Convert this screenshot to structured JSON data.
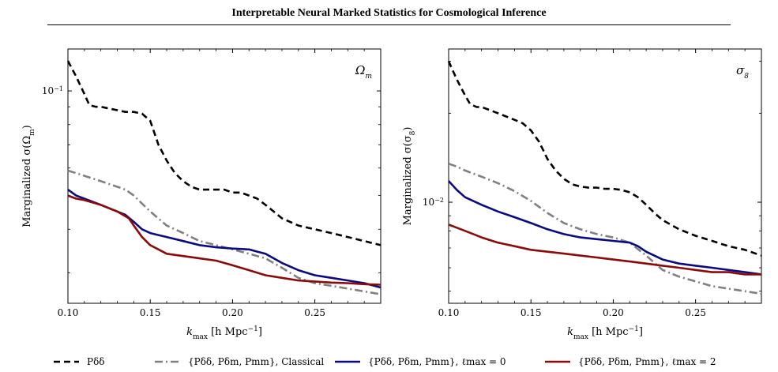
{
  "paper": {
    "title": "Interpretable Neural Marked Statistics for Cosmological Inference"
  },
  "chart_data": [
    {
      "type": "line",
      "panel_label": "Ωm",
      "xlabel": "kmax [h Mpc−1]",
      "ylabel": "Marginalized σ(Ωm)",
      "xlim": [
        0.1,
        0.29
      ],
      "ylim": [
        0.0245,
        0.132
      ],
      "yscale": "log",
      "xticks": [
        "0.10",
        "0.15",
        "0.20",
        "0.25"
      ],
      "yticks": [
        {
          "value": 0.1,
          "label": "10−1"
        }
      ],
      "series": [
        {
          "name": "Pδδ",
          "color": "#000000",
          "dash": "dashed",
          "x": [
            0.1,
            0.105,
            0.11,
            0.113,
            0.117,
            0.12,
            0.125,
            0.13,
            0.135,
            0.14,
            0.145,
            0.15,
            0.155,
            0.16,
            0.165,
            0.17,
            0.175,
            0.18,
            0.185,
            0.19,
            0.195,
            0.2,
            0.205,
            0.21,
            0.215,
            0.22,
            0.225,
            0.23,
            0.24,
            0.25,
            0.26,
            0.27,
            0.28,
            0.29
          ],
          "y": [
            0.122,
            0.11,
            0.098,
            0.091,
            0.09,
            0.09,
            0.089,
            0.088,
            0.087,
            0.087,
            0.086,
            0.082,
            0.07,
            0.063,
            0.058,
            0.055,
            0.053,
            0.052,
            0.052,
            0.052,
            0.052,
            0.051,
            0.051,
            0.05,
            0.049,
            0.047,
            0.045,
            0.043,
            0.041,
            0.04,
            0.039,
            0.038,
            0.037,
            0.036
          ]
        },
        {
          "name": "{Pδδ, Pδm, Pmm}, Classical",
          "color": "#808080",
          "dash": "dashdot",
          "x": [
            0.1,
            0.105,
            0.11,
            0.12,
            0.13,
            0.135,
            0.14,
            0.15,
            0.16,
            0.17,
            0.18,
            0.19,
            0.2,
            0.21,
            0.22,
            0.23,
            0.24,
            0.25,
            0.26,
            0.27,
            0.28,
            0.29
          ],
          "y": [
            0.059,
            0.058,
            0.057,
            0.055,
            0.053,
            0.052,
            0.05,
            0.045,
            0.041,
            0.039,
            0.037,
            0.036,
            0.035,
            0.034,
            0.033,
            0.031,
            0.029,
            0.028,
            0.0275,
            0.027,
            0.0265,
            0.026
          ]
        },
        {
          "name": "{Pδδ, Pδm, Pmm}, ℓmax = 0",
          "color": "#0a0a82",
          "dash": "solid",
          "x": [
            0.1,
            0.105,
            0.11,
            0.12,
            0.13,
            0.135,
            0.14,
            0.145,
            0.15,
            0.16,
            0.17,
            0.18,
            0.19,
            0.2,
            0.21,
            0.215,
            0.22,
            0.23,
            0.24,
            0.25,
            0.26,
            0.27,
            0.28,
            0.29
          ],
          "y": [
            0.052,
            0.05,
            0.049,
            0.047,
            0.045,
            0.044,
            0.042,
            0.04,
            0.039,
            0.038,
            0.037,
            0.036,
            0.0355,
            0.0352,
            0.035,
            0.0345,
            0.034,
            0.032,
            0.0305,
            0.0295,
            0.029,
            0.0285,
            0.028,
            0.0272
          ]
        },
        {
          "name": "{Pδδ, Pδm, Pmm}, ℓmax = 2",
          "color": "#8b0a0a",
          "dash": "solid",
          "x": [
            0.1,
            0.105,
            0.11,
            0.12,
            0.13,
            0.137,
            0.14,
            0.145,
            0.15,
            0.155,
            0.16,
            0.17,
            0.18,
            0.19,
            0.2,
            0.21,
            0.22,
            0.23,
            0.24,
            0.25,
            0.26,
            0.27,
            0.28,
            0.29
          ],
          "y": [
            0.05,
            0.049,
            0.0485,
            0.047,
            0.045,
            0.043,
            0.041,
            0.038,
            0.036,
            0.035,
            0.034,
            0.0335,
            0.033,
            0.0325,
            0.0315,
            0.0305,
            0.0295,
            0.029,
            0.0285,
            0.0283,
            0.0281,
            0.028,
            0.0278,
            0.0277
          ]
        }
      ]
    },
    {
      "type": "line",
      "panel_label": "σ8",
      "xlabel": "kmax [h Mpc−1]",
      "ylabel": "Marginalized σ(σ8)",
      "xlim": [
        0.1,
        0.29
      ],
      "ylim": [
        0.00455,
        0.033
      ],
      "yscale": "log",
      "xticks": [
        "0.10",
        "0.15",
        "0.20",
        "0.25"
      ],
      "yticks": [
        {
          "value": 0.01,
          "label": "10−2"
        }
      ],
      "series": [
        {
          "name": "Pδδ",
          "color": "#000000",
          "dash": "dashed",
          "x": [
            0.1,
            0.105,
            0.11,
            0.113,
            0.117,
            0.12,
            0.125,
            0.13,
            0.135,
            0.14,
            0.145,
            0.15,
            0.155,
            0.16,
            0.165,
            0.17,
            0.175,
            0.18,
            0.185,
            0.19,
            0.195,
            0.2,
            0.205,
            0.21,
            0.215,
            0.22,
            0.225,
            0.23,
            0.24,
            0.25,
            0.26,
            0.27,
            0.28,
            0.29
          ],
          "y": [
            0.03,
            0.026,
            0.023,
            0.0215,
            0.021,
            0.021,
            0.0205,
            0.02,
            0.0195,
            0.019,
            0.0185,
            0.0175,
            0.016,
            0.014,
            0.0128,
            0.012,
            0.0115,
            0.0113,
            0.0112,
            0.0112,
            0.0111,
            0.0111,
            0.011,
            0.0108,
            0.0104,
            0.0098,
            0.0092,
            0.0087,
            0.0081,
            0.0077,
            0.0074,
            0.0071,
            0.0069,
            0.0066
          ]
        },
        {
          "name": "{Pδδ, Pδm, Pmm}, Classical",
          "color": "#808080",
          "dash": "dashdot",
          "x": [
            0.1,
            0.105,
            0.11,
            0.12,
            0.13,
            0.14,
            0.15,
            0.16,
            0.17,
            0.18,
            0.19,
            0.2,
            0.21,
            0.22,
            0.23,
            0.24,
            0.25,
            0.26,
            0.27,
            0.28,
            0.29
          ],
          "y": [
            0.0135,
            0.0132,
            0.0128,
            0.0122,
            0.0116,
            0.0109,
            0.0101,
            0.0092,
            0.0085,
            0.0081,
            0.0078,
            0.0076,
            0.0073,
            0.0066,
            0.0059,
            0.0056,
            0.0054,
            0.0052,
            0.0051,
            0.005,
            0.0049
          ]
        },
        {
          "name": "{Pδδ, Pδm, Pmm}, ℓmax = 0",
          "color": "#0a0a82",
          "dash": "solid",
          "x": [
            0.1,
            0.105,
            0.11,
            0.12,
            0.13,
            0.14,
            0.15,
            0.16,
            0.17,
            0.18,
            0.19,
            0.2,
            0.21,
            0.215,
            0.22,
            0.23,
            0.24,
            0.25,
            0.26,
            0.27,
            0.28,
            0.29
          ],
          "y": [
            0.0118,
            0.011,
            0.0104,
            0.0098,
            0.0093,
            0.0089,
            0.0085,
            0.0081,
            0.0078,
            0.0076,
            0.0075,
            0.0074,
            0.0073,
            0.0071,
            0.0068,
            0.0064,
            0.0062,
            0.0061,
            0.006,
            0.0059,
            0.0058,
            0.0057
          ]
        },
        {
          "name": "{Pδδ, Pδm, Pmm}, ℓmax = 2",
          "color": "#8b0a0a",
          "dash": "solid",
          "x": [
            0.1,
            0.105,
            0.11,
            0.115,
            0.12,
            0.13,
            0.14,
            0.15,
            0.16,
            0.17,
            0.18,
            0.19,
            0.2,
            0.21,
            0.22,
            0.23,
            0.24,
            0.25,
            0.26,
            0.27,
            0.28,
            0.29
          ],
          "y": [
            0.0084,
            0.0082,
            0.008,
            0.0078,
            0.0076,
            0.0073,
            0.0071,
            0.0069,
            0.0068,
            0.0067,
            0.0066,
            0.0065,
            0.0064,
            0.0063,
            0.0062,
            0.0061,
            0.006,
            0.0059,
            0.0058,
            0.0058,
            0.0057,
            0.0057
          ]
        }
      ]
    }
  ],
  "legend": [
    {
      "label": "Pδδ",
      "color": "#000000",
      "dash": "dashed"
    },
    {
      "label": "{Pδδ, Pδm, Pmm}, Classical",
      "color": "#808080",
      "dash": "dashdot"
    },
    {
      "label": "{Pδδ, Pδm, Pmm}, ℓmax = 0",
      "color": "#0a0a82",
      "dash": "solid"
    },
    {
      "label": "{Pδδ, Pδm, Pmm}, ℓmax = 2",
      "color": "#8b0a0a",
      "dash": "solid"
    }
  ]
}
